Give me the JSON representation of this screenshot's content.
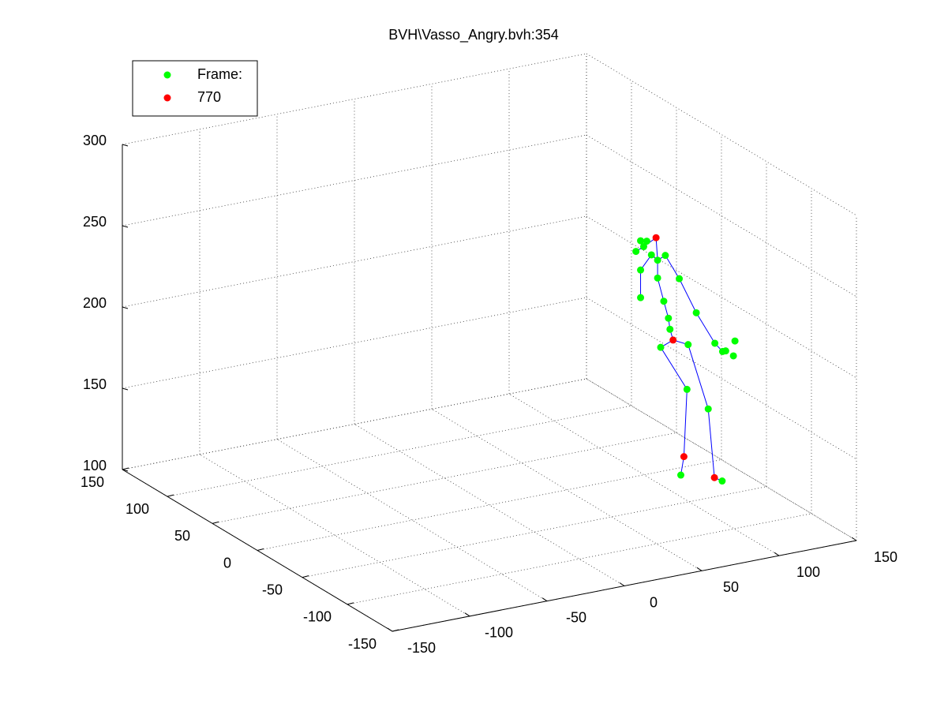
{
  "chart_data": {
    "type": "scatter3d",
    "title": "BVH\\Vasso_Angry.bvh:354",
    "xlim": [
      -150,
      150
    ],
    "ylim": [
      -150,
      150
    ],
    "zlim": [
      100,
      300
    ],
    "xticks": [
      -150,
      -100,
      -50,
      0,
      50,
      100,
      150
    ],
    "yticks": [
      -150,
      -100,
      -50,
      0,
      50,
      100,
      150
    ],
    "zticks": [
      100,
      150,
      200,
      250,
      300
    ],
    "grid": true,
    "legend": "northwest",
    "series": [
      {
        "style": "line",
        "color": "#0000ff",
        "x": [
          115,
          117,
          119,
          102,
          110,
          111,
          124,
          128,
          133,
          null,
          110,
          108,
          107,
          104,
          100,
          100,
          99,
          null,
          89,
          89,
          96,
          100,
          105,
          114,
          125,
          137,
          142,
          null,
          86,
          91,
          99
        ],
        "y": [
          -15,
          -15,
          -15,
          -15,
          -15,
          -30,
          -30,
          -30,
          -30,
          null,
          -15,
          -15,
          -15,
          -15,
          -15,
          -15,
          -15,
          null,
          -15,
          -15,
          -15,
          -15,
          -15,
          -15,
          -15,
          -15,
          -15,
          null,
          -15,
          -15,
          -15
        ],
        "z": [
          102,
          113,
          154,
          183,
          186,
          188,
          146,
          103,
          100,
          null,
          186,
          193,
          200,
          211,
          226,
          237,
          251,
          null,
          216,
          233,
          241,
          237,
          239,
          223,
          200,
          179,
          173,
          null,
          245,
          247,
          251
        ]
      },
      {
        "name": "Frame:",
        "style": "marker",
        "color": "#00ff00",
        "x": [
          115,
          119,
          102,
          111,
          124,
          133,
          108,
          107,
          104,
          100,
          100,
          89,
          93,
          86,
          91,
          96,
          89,
          89,
          105,
          114,
          125,
          137,
          144,
          149,
          150,
          142
        ],
        "y": [
          -15,
          -15,
          -15,
          -30,
          -30,
          -30,
          -15,
          -15,
          -15,
          -15,
          -15,
          -15,
          -15,
          -15,
          -15,
          -15,
          -15,
          -15,
          -15,
          -15,
          -15,
          -15,
          -15,
          -15,
          -15,
          -15
        ],
        "z": [
          102,
          154,
          183,
          188,
          146,
          100,
          193,
          200,
          211,
          226,
          237,
          251,
          250,
          245,
          247,
          241,
          233,
          216,
          239,
          223,
          200,
          179,
          173,
          169,
          178,
          173
        ]
      },
      {
        "name": "770",
        "style": "marker",
        "color": "#ff0000",
        "x": [
          99,
          110,
          117,
          128
        ],
        "y": [
          -15,
          -15,
          -15,
          -30
        ],
        "z": [
          251,
          186,
          113,
          103
        ]
      }
    ]
  }
}
